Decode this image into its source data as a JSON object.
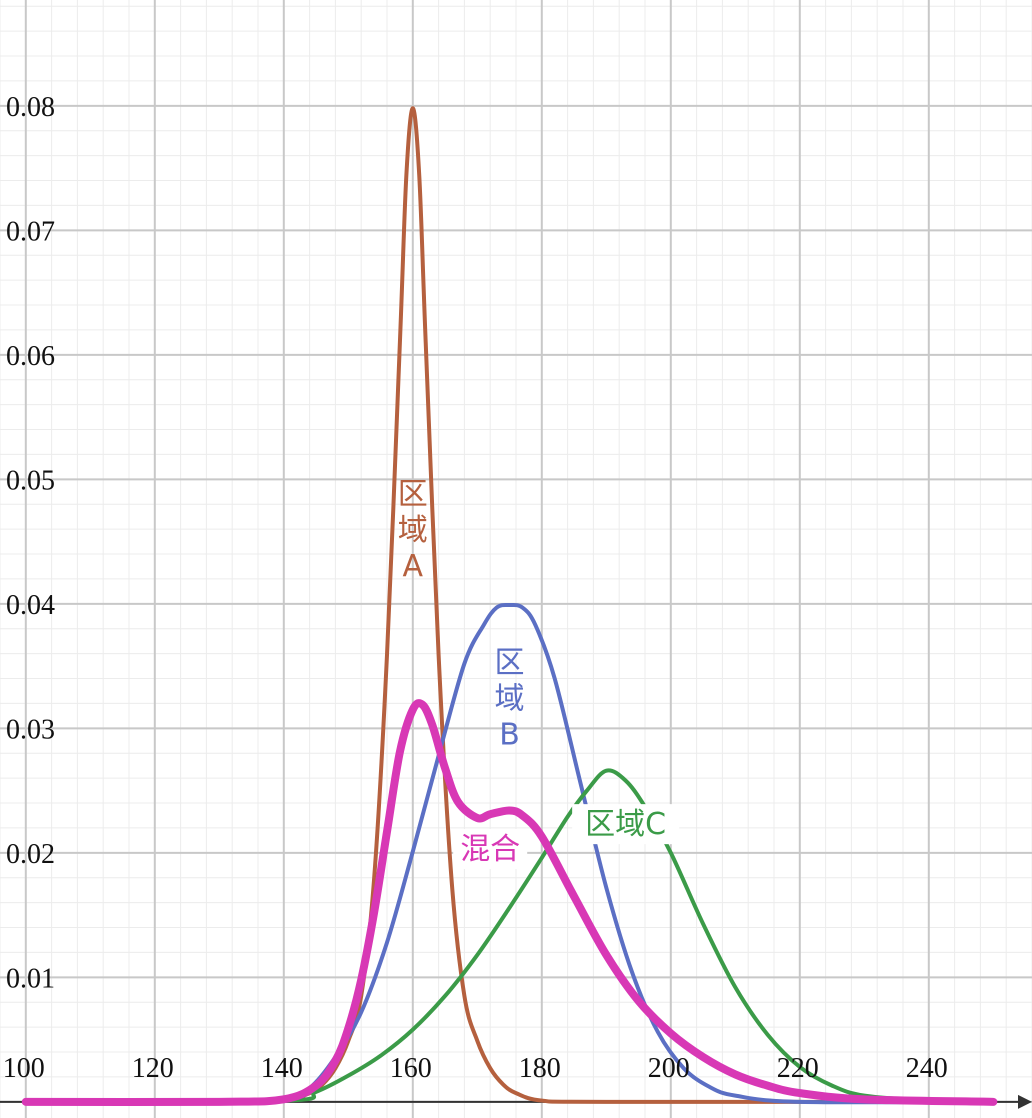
{
  "chart_data": {
    "type": "line",
    "xlim": [
      96,
      256
    ],
    "ylim": [
      -0.0013,
      0.0885
    ],
    "x_ticks": [
      "100",
      "120",
      "140",
      "160",
      "180",
      "200",
      "220",
      "240"
    ],
    "y_ticks": [
      "0.01",
      "0.02",
      "0.03",
      "0.04",
      "0.05",
      "0.06",
      "0.07",
      "0.08"
    ],
    "grid": true,
    "series": [
      {
        "name": "区域A",
        "label_lines": [
          "区",
          "域",
          "A"
        ],
        "color": "#b5603e",
        "x": [
          130,
          140,
          144,
          146,
          148,
          150,
          152,
          154,
          156,
          158,
          159,
          160,
          161,
          162,
          164,
          166,
          168,
          170,
          172,
          174,
          176,
          180,
          190,
          250
        ],
        "y": [
          0.0,
          0.0001,
          0.0007,
          0.0014,
          0.0027,
          0.0049,
          0.0085,
          0.0179,
          0.0359,
          0.061,
          0.0744,
          0.0798,
          0.0744,
          0.061,
          0.0359,
          0.0179,
          0.0085,
          0.0049,
          0.0027,
          0.0014,
          0.0007,
          0.0001,
          0.0,
          0.0
        ]
      },
      {
        "name": "区域B",
        "label_lines": [
          "区",
          "域",
          "B"
        ],
        "color": "#5b6fc4",
        "x": [
          100,
          130,
          140,
          144,
          148,
          152,
          156,
          160,
          164,
          168,
          171,
          173,
          175,
          177,
          179,
          182,
          186,
          190,
          194,
          198,
          202,
          206,
          210,
          220,
          250
        ],
        "y": [
          0.0,
          0.0,
          0.0003,
          0.0011,
          0.0036,
          0.0072,
          0.0128,
          0.0201,
          0.0278,
          0.0352,
          0.0383,
          0.0397,
          0.0399,
          0.0397,
          0.0383,
          0.034,
          0.0256,
          0.0172,
          0.0104,
          0.0056,
          0.0027,
          0.0012,
          0.0005,
          0.0,
          0.0
        ]
      },
      {
        "name": "区域C",
        "label_lines": [
          "区域C"
        ],
        "color": "#3b9b48",
        "x": [
          100,
          140,
          145,
          150,
          155,
          160,
          165,
          170,
          175,
          180,
          184,
          187,
          190,
          193,
          196,
          200,
          205,
          210,
          215,
          220,
          225,
          230,
          240,
          250
        ],
        "y": [
          0.0,
          0.0001,
          0.0008,
          0.0021,
          0.0037,
          0.0058,
          0.0085,
          0.0118,
          0.0156,
          0.0196,
          0.0229,
          0.025,
          0.0266,
          0.0258,
          0.0237,
          0.02,
          0.0143,
          0.0092,
          0.0054,
          0.0028,
          0.0013,
          0.0005,
          0.0001,
          0.0
        ]
      },
      {
        "name": "混合",
        "label_lines": [
          "混合"
        ],
        "color": "#d838b5",
        "x": [
          100,
          130,
          140,
          145,
          148,
          150,
          152,
          154,
          156,
          158,
          160,
          161.5,
          163,
          165,
          167,
          170,
          172,
          175,
          177,
          180,
          185,
          190,
          195,
          200,
          205,
          210,
          215,
          220,
          230,
          250
        ],
        "y": [
          0.0,
          0.0,
          0.0002,
          0.0013,
          0.0033,
          0.0059,
          0.0098,
          0.0152,
          0.0217,
          0.0281,
          0.0315,
          0.0319,
          0.0303,
          0.0268,
          0.0241,
          0.0228,
          0.0231,
          0.0234,
          0.023,
          0.0213,
          0.0165,
          0.0118,
          0.0081,
          0.0055,
          0.0036,
          0.0022,
          0.0013,
          0.0007,
          0.0002,
          0.0
        ],
        "emphasis": true
      }
    ]
  }
}
